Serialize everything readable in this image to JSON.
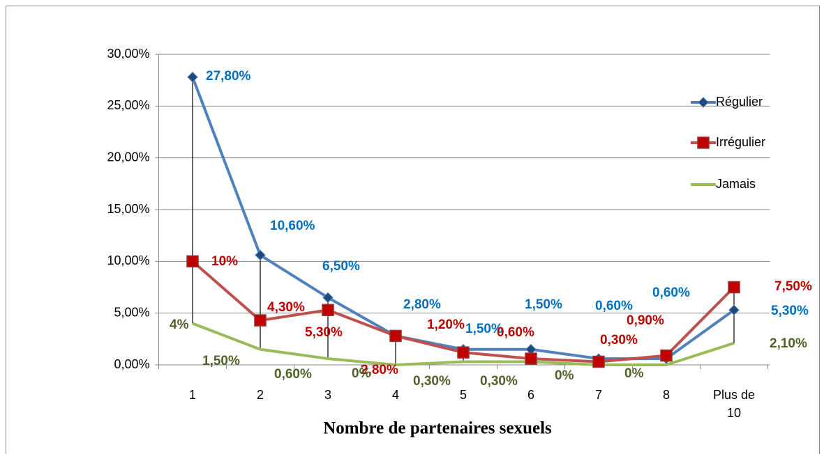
{
  "chart_data": {
    "type": "line",
    "x_label": "Nombre de partenaires sexuels",
    "categories": [
      "1",
      "2",
      "3",
      "4",
      "5",
      "6",
      "7",
      "8",
      "Plus de 10"
    ],
    "series": [
      {
        "name": "Régulier",
        "color": "#4f81bd",
        "marker": "diamond",
        "label_color": "#0070c0",
        "values": [
          27.8,
          10.6,
          6.5,
          2.8,
          1.5,
          1.5,
          0.6,
          0.6,
          5.3
        ],
        "value_labels": [
          "27,80%",
          "10,60%",
          "6,50%",
          "2,80%",
          "1,50%",
          "1,50%",
          "0,60%",
          "0,60%",
          "5,30%"
        ]
      },
      {
        "name": "Irrégulier",
        "color": "#c0504d",
        "marker": "square",
        "label_color": "#c00000",
        "values": [
          10,
          4.3,
          5.3,
          2.8,
          1.2,
          0.6,
          0.3,
          0.9,
          7.5
        ],
        "value_labels": [
          "10%",
          "4,30%",
          "5,30%",
          "2,80%",
          "1,20%",
          "0,60%",
          "0,30%",
          "0,90%",
          "7,50%"
        ]
      },
      {
        "name": "Jamais",
        "color": "#9bbb59",
        "marker": "none",
        "label_color": "#4f6228",
        "values": [
          4,
          1.5,
          0.6,
          0,
          0.3,
          0.3,
          0,
          0,
          2.1
        ],
        "value_labels": [
          "4%",
          "1,50%",
          "0,60%",
          "0%",
          "0,30%",
          "0,30%",
          "0%",
          "0%",
          "2,10%"
        ]
      }
    ],
    "ylim": [
      0,
      30
    ],
    "yticks": [
      {
        "value": 0,
        "label": "0,00%"
      },
      {
        "value": 5,
        "label": "5,00%"
      },
      {
        "value": 10,
        "label": "10,00%"
      },
      {
        "value": 15,
        "label": "15,00%"
      },
      {
        "value": 20,
        "label": "20,00%"
      },
      {
        "value": 25,
        "label": "25,00%"
      },
      {
        "value": 30,
        "label": "30,00%"
      }
    ],
    "grid": true,
    "legend": "right",
    "high_low_lines": true
  }
}
